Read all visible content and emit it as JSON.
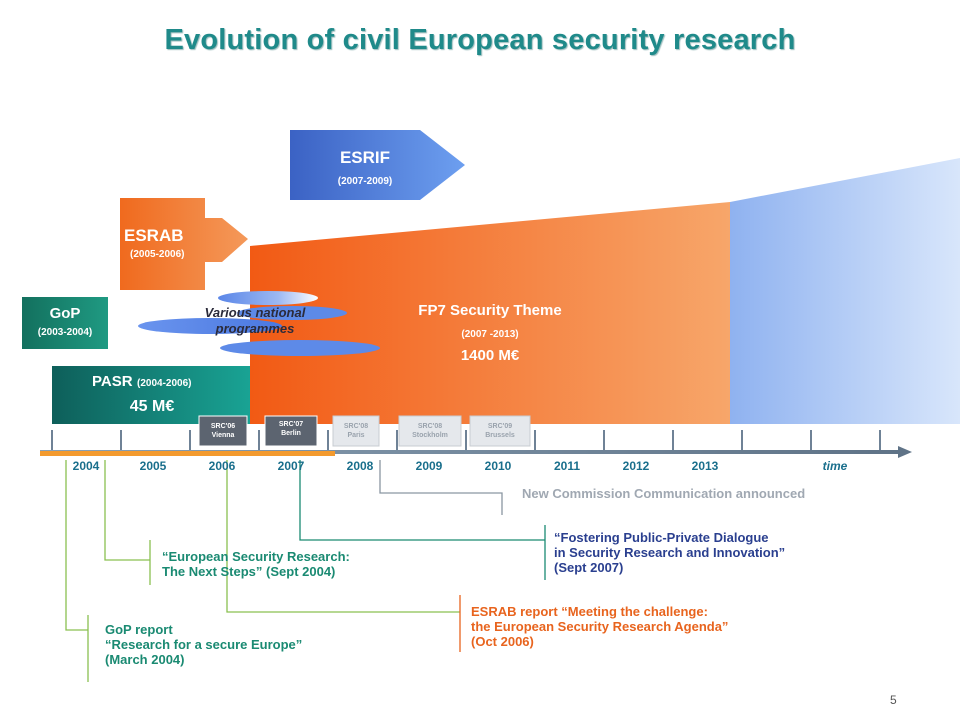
{
  "title": "Evolution of civil European security research",
  "esrif": {
    "label": "ESRIF",
    "years": "(2007-2009)"
  },
  "esrab": {
    "label": "ESRAB",
    "years": "(2005-2006)"
  },
  "gop": {
    "label": "GoP",
    "years": "(2003-2004)"
  },
  "pasr": {
    "label": "PASR",
    "years": "(2004-2006)",
    "amount": "45 M€"
  },
  "national": {
    "line1": "Various national",
    "line2": "programmes"
  },
  "fp7": {
    "label": "FP7 Security Theme",
    "years": "(2007 -2013)",
    "amount": "1400 M€"
  },
  "src": [
    {
      "line1": "SRC'06",
      "line2": "Vienna"
    },
    {
      "line1": "SRC'07",
      "line2": "Berlin"
    },
    {
      "line1": "SRC'08",
      "line2": "Paris"
    },
    {
      "line1": "SRC'08",
      "line2": "Stockholm"
    },
    {
      "line1": "SRC'09",
      "line2": "Brussels"
    }
  ],
  "years": [
    "2004",
    "2005",
    "2006",
    "2007",
    "2008",
    "2009",
    "2010",
    "2011",
    "2012",
    "2013"
  ],
  "axis_label": "time",
  "notes": {
    "new_comm": "New Commission Communication announced",
    "fostering": "“Fostering Public-Private Dialogue\nin Security Research and Innovation”\n(Sept 2007)",
    "esr_next": "“European Security Research:\nThe Next Steps” (Sept 2004)",
    "esrab_report": "ESRAB report “Meeting the challenge:\nthe European Security Research Agenda”\n(Oct 2006)",
    "gop_report": "GoP report\n“Research for a secure Europe”\n(March 2004)"
  },
  "page_number": "5",
  "colors": {
    "title": "#1f8a8a",
    "fp7": "#f47a2a",
    "esrif": "#4a78d8",
    "gop": "#1a8a72",
    "pasr": "#0f7a70",
    "notes_teal": "#1a8a72",
    "notes_blue": "#2a3f8f",
    "notes_orange": "#e8641e"
  }
}
